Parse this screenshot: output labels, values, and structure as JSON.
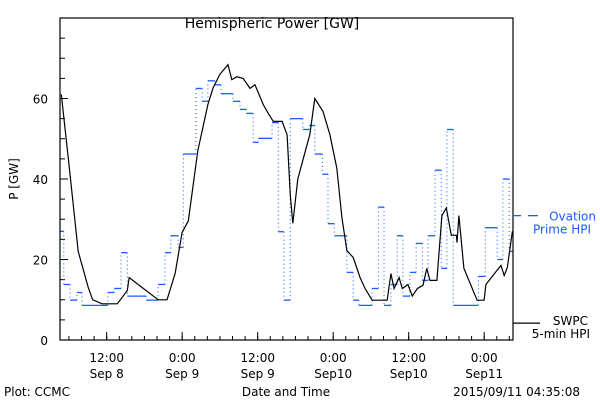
{
  "chart_data": {
    "type": "line",
    "title": "Hemispheric Power [GW]",
    "xlabel": "Date and Time",
    "ylabel": "P [GW]",
    "x_units": "hours since 2015/09/08 04:35",
    "xlim": [
      0,
      72
    ],
    "ylim": [
      0,
      80
    ],
    "y_ticks": [
      0,
      20,
      40,
      60
    ],
    "y_minor_step": 5,
    "x_minor_step_hours": 2,
    "x_ticks": [
      {
        "hour": 7.42,
        "time": "12:00",
        "date": "Sep 8"
      },
      {
        "hour": 19.42,
        "time": "0:00",
        "date": "Sep 9"
      },
      {
        "hour": 31.42,
        "time": "12:00",
        "date": "Sep 9"
      },
      {
        "hour": 43.42,
        "time": "0:00",
        "date": "Sep10"
      },
      {
        "hour": 55.42,
        "time": "12:00",
        "date": "Sep10"
      },
      {
        "hour": 67.42,
        "time": "0:00",
        "date": "Sep11"
      }
    ],
    "grid": false,
    "series": [
      {
        "name": "Ovation Prime HPI",
        "legend_lines": [
          "Ovation",
          "Prime HPI"
        ],
        "style": "step",
        "color": "#1a5cff",
        "legend_value": 30.9,
        "steps": [
          [
            0,
            27
          ],
          [
            0.6,
            13.8
          ],
          [
            1.6,
            9.9
          ],
          [
            2.7,
            11.8
          ],
          [
            3.5,
            8.6
          ],
          [
            7.6,
            11.8
          ],
          [
            8.6,
            12.8
          ],
          [
            9.7,
            21.7
          ],
          [
            10.7,
            10.9
          ],
          [
            13.7,
            9.9
          ],
          [
            15.6,
            13.8
          ],
          [
            16.7,
            21.7
          ],
          [
            17.6,
            25.9
          ],
          [
            18.8,
            23
          ],
          [
            19.6,
            46.2
          ],
          [
            21.6,
            62.5
          ],
          [
            22.6,
            59.3
          ],
          [
            23.5,
            64.4
          ],
          [
            24.6,
            63.4
          ],
          [
            25.6,
            61.2
          ],
          [
            27.5,
            59.3
          ],
          [
            28.6,
            57.3
          ],
          [
            29.6,
            56.3
          ],
          [
            30.7,
            49.1
          ],
          [
            31.5,
            50.1
          ],
          [
            33.7,
            54
          ],
          [
            34.7,
            26.9
          ],
          [
            35.6,
            9.9
          ],
          [
            36.6,
            55
          ],
          [
            38.6,
            52.3
          ],
          [
            39.6,
            53.3
          ],
          [
            40.5,
            46.2
          ],
          [
            41.7,
            41.2
          ],
          [
            42.6,
            28.9
          ],
          [
            43.6,
            25.9
          ],
          [
            45.6,
            16.8
          ],
          [
            46.6,
            9.9
          ],
          [
            47.5,
            8.6
          ],
          [
            49.6,
            12.8
          ],
          [
            50.6,
            33
          ],
          [
            51.5,
            8.6
          ],
          [
            52.6,
            13.8
          ],
          [
            53.6,
            25.9
          ],
          [
            54.5,
            10.9
          ],
          [
            55.6,
            16.8
          ],
          [
            56.6,
            24
          ],
          [
            57.6,
            14.8
          ],
          [
            58.5,
            25.9
          ],
          [
            59.6,
            42.2
          ],
          [
            60.6,
            17.8
          ],
          [
            61.5,
            52.3
          ],
          [
            62.5,
            8.6
          ],
          [
            66.5,
            15.8
          ],
          [
            67.6,
            27.9
          ],
          [
            69.5,
            20
          ],
          [
            70.4,
            40
          ],
          [
            71.4,
            22
          ]
        ],
        "end_hour": 72
      },
      {
        "name": "SWPC 5-min HPI",
        "legend_lines": [
          "SWPC",
          "5-min HPI"
        ],
        "style": "line",
        "color": "#000000",
        "legend_value": 4.2,
        "points": [
          [
            0.2,
            61
          ],
          [
            1.4,
            44
          ],
          [
            2.9,
            22
          ],
          [
            4.5,
            13
          ],
          [
            5.2,
            10
          ],
          [
            6.7,
            9
          ],
          [
            9.1,
            9
          ],
          [
            10.7,
            12.3
          ],
          [
            11.0,
            15.5
          ],
          [
            15.6,
            10
          ],
          [
            17.0,
            10
          ],
          [
            18.3,
            16.5
          ],
          [
            19.4,
            26.7
          ],
          [
            20.4,
            29.6
          ],
          [
            21.9,
            47
          ],
          [
            23.5,
            58.5
          ],
          [
            24.3,
            62.5
          ],
          [
            25.4,
            66
          ],
          [
            26.7,
            68.4
          ],
          [
            27.3,
            64.7
          ],
          [
            28.1,
            65.4
          ],
          [
            29.1,
            65
          ],
          [
            30.2,
            62.5
          ],
          [
            31.0,
            63.4
          ],
          [
            32.3,
            58.5
          ],
          [
            33.1,
            56.3
          ],
          [
            33.9,
            54.3
          ],
          [
            35.3,
            54.3
          ],
          [
            36.1,
            51
          ],
          [
            36.6,
            36
          ],
          [
            37.0,
            29
          ],
          [
            37.8,
            40
          ],
          [
            39.0,
            47
          ],
          [
            39.7,
            51
          ],
          [
            40.5,
            60
          ],
          [
            41.8,
            56.8
          ],
          [
            42.9,
            51
          ],
          [
            44.0,
            42.7
          ],
          [
            44.8,
            30.4
          ],
          [
            45.6,
            22.2
          ],
          [
            46.6,
            20.5
          ],
          [
            47.7,
            15.5
          ],
          [
            48.5,
            12.8
          ],
          [
            49.6,
            9.9
          ],
          [
            52.0,
            9.9
          ],
          [
            52.6,
            16.5
          ],
          [
            53.1,
            12.8
          ],
          [
            53.9,
            15.5
          ],
          [
            54.4,
            12.8
          ],
          [
            55.3,
            13.8
          ],
          [
            56.0,
            10.9
          ],
          [
            56.8,
            12.8
          ],
          [
            57.7,
            13.6
          ],
          [
            58.3,
            17.8
          ],
          [
            58.8,
            14.8
          ],
          [
            59.9,
            14.8
          ],
          [
            60.7,
            30.9
          ],
          [
            61.4,
            32.8
          ],
          [
            62.2,
            26
          ],
          [
            63.0,
            26
          ],
          [
            63.1,
            24.2
          ],
          [
            63.4,
            30.9
          ],
          [
            64.2,
            17.8
          ],
          [
            66.3,
            9.9
          ],
          [
            67.4,
            9.9
          ],
          [
            67.7,
            13.8
          ],
          [
            69.2,
            16.8
          ],
          [
            70.1,
            18.5
          ],
          [
            70.6,
            16
          ],
          [
            71.1,
            18
          ],
          [
            71.9,
            27
          ]
        ]
      }
    ]
  },
  "footer": {
    "left": "Plot: CCMC",
    "center": "Date and Time",
    "right": "2015/09/11 04:35:08"
  }
}
